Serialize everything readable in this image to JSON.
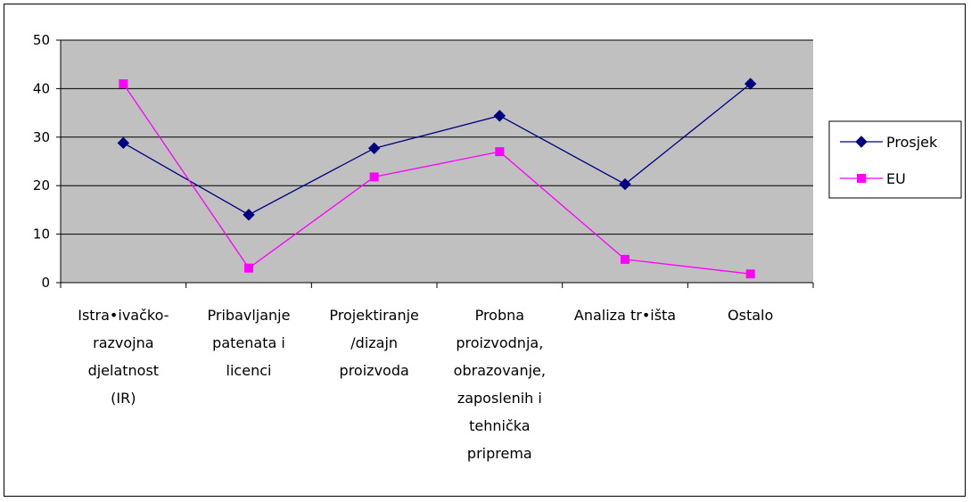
{
  "chart_data": {
    "type": "line",
    "title": "",
    "xlabel": "",
    "ylabel": "",
    "ylim": [
      0,
      50
    ],
    "yticks": [
      0,
      10,
      20,
      30,
      40,
      50
    ],
    "grid": "horizontal",
    "legend_position": "right",
    "categories": [
      "Istra•ivačko-razvojna djelatnost (IR)",
      "Pribavljanje patenata i licenci",
      "Projektiranje /dizajn proizvoda",
      "Probna proizvodnja, obrazovanje, zaposlenih i tehnička priprema",
      "Analiza tr•išta",
      "Ostalo"
    ],
    "category_lines": [
      [
        "Istra•ivačko-",
        "razvojna",
        "djelatnost",
        "(IR)"
      ],
      [
        "Pribavljanje",
        "patenata i",
        "licenci"
      ],
      [
        "Projektiranje",
        "/dizajn",
        "proizvoda"
      ],
      [
        "Probna",
        "proizvodnja,",
        "obrazovanje,",
        "zaposlenih i",
        "tehnička",
        "priprema"
      ],
      [
        "Analiza tr•išta"
      ],
      [
        "Ostalo"
      ]
    ],
    "series": [
      {
        "name": "Prosjek",
        "marker": "diamond",
        "color": "#000080",
        "values": [
          28.8,
          14,
          27.7,
          34.4,
          20.3,
          41
        ]
      },
      {
        "name": "EU",
        "marker": "square",
        "color": "#ff00ff",
        "values": [
          41,
          3,
          21.8,
          27,
          4.8,
          1.8
        ]
      }
    ],
    "colors": {
      "plot_background": "#c0c0c0",
      "grid": "#000000"
    }
  }
}
